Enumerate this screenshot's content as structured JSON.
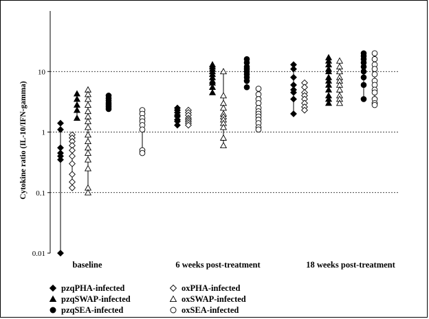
{
  "chart_data": {
    "type": "scatter",
    "ylabel": "Cytokine ratio (IL-10/IFN-gamma)",
    "y_scale": "log",
    "ylim": [
      0.01,
      100
    ],
    "y_ticks": [
      {
        "value": 0.01,
        "label": "0.01"
      },
      {
        "value": 0.1,
        "label": "0.1"
      },
      {
        "value": 1,
        "label": "1"
      },
      {
        "value": 10,
        "label": "10"
      }
    ],
    "grid": "dashed horizontal at 0.1, 1, 10",
    "groups": [
      "baseline",
      "6 weeks post-treatment",
      "18 weeks post-treatment"
    ],
    "legend_position": "bottom-left",
    "series": [
      {
        "name": "pzqPHA-infected",
        "marker": "diamond",
        "filled": true,
        "color": "#000000",
        "points": [
          {
            "group": 0,
            "values": [
              1.4,
              1.1,
              0.55,
              0.45,
              0.4,
              0.35,
              0.01
            ]
          },
          {
            "group": 1,
            "values": [
              2.5,
              2.3,
              2.1,
              1.9,
              1.8,
              1.6,
              1.5,
              1.3
            ]
          },
          {
            "group": 2,
            "values": [
              13,
              11,
              8,
              6,
              5,
              4.5,
              3.5,
              2
            ]
          }
        ]
      },
      {
        "name": "oxPHA-infected",
        "marker": "diamond",
        "filled": false,
        "color": "#000000",
        "points": [
          {
            "group": 0,
            "values": [
              0.9,
              0.8,
              0.7,
              0.6,
              0.5,
              0.4,
              0.3,
              0.2,
              0.15,
              0.12
            ]
          },
          {
            "group": 1,
            "values": [
              2.3,
              2.1,
              1.9,
              1.7,
              1.6,
              1.5,
              1.4,
              1.3
            ]
          },
          {
            "group": 2,
            "values": [
              6.5,
              5.5,
              4.5,
              4,
              3.5,
              3,
              2.6,
              2.3
            ]
          }
        ]
      },
      {
        "name": "pzqSWAP-infected",
        "marker": "triangle",
        "filled": true,
        "color": "#000000",
        "points": [
          {
            "group": 0,
            "values": [
              4.3,
              3.5,
              2.8,
              2.3,
              1.7
            ]
          },
          {
            "group": 1,
            "values": [
              13,
              12,
              11,
              10,
              9,
              8,
              7,
              6.5,
              5.5,
              4.5
            ]
          },
          {
            "group": 2,
            "values": [
              17,
              15,
              13,
              11,
              10,
              8,
              7,
              6,
              5,
              4,
              3.5,
              3
            ]
          }
        ]
      },
      {
        "name": "oxSWAP-infected",
        "marker": "triangle",
        "filled": false,
        "color": "#000000",
        "points": [
          {
            "group": 0,
            "values": [
              5,
              4.2,
              3.5,
              2.8,
              2.2,
              1.8,
              1.5,
              1.2,
              0.9,
              0.7,
              0.55,
              0.45,
              0.35,
              0.25,
              0.12,
              0.1
            ]
          },
          {
            "group": 1,
            "values": [
              10,
              4,
              3,
              2.5,
              2,
              1.8,
              1.6,
              1.4,
              1.2,
              0.8,
              0.6
            ]
          },
          {
            "group": 2,
            "values": [
              15,
              12,
              10,
              8,
              7,
              6,
              5,
              4,
              3.5,
              3
            ]
          }
        ]
      },
      {
        "name": "pzqSEA-infected",
        "marker": "circle",
        "filled": true,
        "color": "#000000",
        "points": [
          {
            "group": 0,
            "values": [
              4,
              3.6,
              3.3,
              3,
              2.8,
              2.6,
              2.4
            ]
          },
          {
            "group": 1,
            "values": [
              16,
              14,
              12,
              11,
              10,
              9,
              8,
              7,
              5.5
            ]
          },
          {
            "group": 2,
            "values": [
              20,
              18,
              16,
              14,
              12,
              10,
              8,
              6,
              3.5
            ]
          }
        ]
      },
      {
        "name": "oxSEA-infected",
        "marker": "circle",
        "filled": false,
        "color": "#000000",
        "points": [
          {
            "group": 0,
            "values": [
              2.3,
              2,
              1.7,
              1.5,
              1.3,
              1.1,
              0.5,
              0.45
            ]
          },
          {
            "group": 1,
            "values": [
              5.2,
              4.2,
              3.5,
              3,
              2.5,
              2.2,
              2,
              1.8,
              1.6,
              1.4,
              1.2,
              1.1
            ]
          },
          {
            "group": 2,
            "values": [
              20,
              16,
              13,
              11,
              9,
              7,
              6,
              5,
              4.5,
              3.5,
              3,
              2.8
            ]
          }
        ]
      }
    ]
  }
}
